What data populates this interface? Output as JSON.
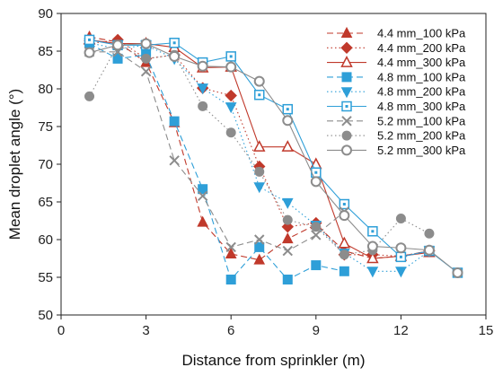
{
  "chart_data": {
    "type": "line",
    "xlabel": "Distance from sprinkler (m)",
    "ylabel": "Mean droplet angle (°)",
    "xlim": [
      0,
      15
    ],
    "ylim": [
      50,
      90
    ],
    "xticks": [
      0,
      3,
      6,
      9,
      12,
      15
    ],
    "yticks": [
      50,
      55,
      60,
      65,
      70,
      75,
      80,
      85,
      90
    ],
    "grid": false,
    "legend_position": "top-right",
    "series": [
      {
        "name": "4.4 mm_100 kPa",
        "color": "#c0392b",
        "dash": "dash",
        "marker": "triangle-filled",
        "x": [
          1,
          2,
          3,
          4,
          5,
          6,
          7,
          8,
          9,
          10,
          11,
          12,
          13
        ],
        "y": [
          86.9,
          86.2,
          83.5,
          75.5,
          62.3,
          58.1,
          57.3,
          60.1,
          62.0,
          58.5,
          57.5,
          57.8,
          58.5
        ]
      },
      {
        "name": "4.4 mm_200 kPa",
        "color": "#c0392b",
        "dash": "dot",
        "marker": "diamond-filled",
        "x": [
          1,
          2,
          3,
          4,
          5,
          6,
          7,
          8,
          9,
          10,
          11,
          12,
          13
        ],
        "y": [
          86.0,
          86.5,
          84.0,
          84.5,
          80.1,
          79.1,
          69.7,
          61.7,
          62.2,
          58.0,
          58.0,
          57.8,
          58.5
        ]
      },
      {
        "name": "4.4 mm_300 kPa",
        "color": "#c0392b",
        "dash": "solid",
        "marker": "triangle-open",
        "x": [
          1,
          2,
          3,
          4,
          5,
          6,
          7,
          8,
          9,
          10,
          11,
          12,
          13
        ],
        "y": [
          86.5,
          86.0,
          86.0,
          85.5,
          82.8,
          82.9,
          72.3,
          72.3,
          70.0,
          59.5,
          57.5,
          57.8,
          58.3
        ]
      },
      {
        "name": "4.8 mm_100 kPa",
        "color": "#2e9fd8",
        "dash": "dash",
        "marker": "square-filled",
        "x": [
          1,
          2,
          3,
          4,
          5,
          6,
          7,
          8,
          9,
          10
        ],
        "y": [
          86.0,
          84.0,
          84.5,
          75.7,
          66.7,
          54.7,
          59.0,
          54.7,
          56.6,
          55.8
        ]
      },
      {
        "name": "4.8 mm_200 kPa",
        "color": "#2e9fd8",
        "dash": "dot",
        "marker": "triangle-down-filled",
        "x": [
          1,
          2,
          3,
          4,
          5,
          6,
          7,
          8,
          9,
          10,
          11,
          12,
          13
        ],
        "y": [
          86.1,
          85.3,
          85.8,
          84.0,
          80.1,
          77.6,
          67.0,
          64.9,
          61.9,
          58.2,
          55.8,
          55.8,
          58.5
        ]
      },
      {
        "name": "4.8 mm_300 kPa",
        "color": "#2e9fd8",
        "dash": "solid",
        "marker": "square-open",
        "x": [
          1,
          2,
          3,
          4,
          5,
          6,
          7,
          8,
          9,
          10,
          11,
          12,
          13,
          14
        ],
        "y": [
          86.5,
          85.8,
          85.8,
          86.1,
          83.5,
          84.3,
          79.2,
          77.3,
          68.9,
          64.7,
          61.1,
          57.7,
          58.5,
          55.6
        ]
      },
      {
        "name": "5.2 mm_100 kPa",
        "color": "#8c8c8c",
        "dash": "dash",
        "marker": "cross",
        "x": [
          1,
          2,
          3,
          4,
          5,
          6,
          7,
          8,
          9,
          10
        ],
        "y": [
          84.9,
          84.9,
          82.3,
          70.5,
          65.8,
          59.0,
          60.0,
          58.5,
          60.6,
          63.7
        ]
      },
      {
        "name": "5.2 mm_200 kPa",
        "color": "#8c8c8c",
        "dash": "dot",
        "marker": "circle-filled",
        "x": [
          1,
          2,
          3,
          4,
          5,
          6,
          7,
          8,
          9,
          10,
          11,
          12,
          13
        ],
        "y": [
          79.0,
          85.8,
          84.0,
          84.5,
          77.7,
          74.2,
          69.0,
          62.6,
          61.7,
          58.0,
          58.6,
          62.8,
          60.8
        ]
      },
      {
        "name": "5.2 mm_300 kPa",
        "color": "#8c8c8c",
        "dash": "solid",
        "marker": "circle-open",
        "x": [
          1,
          2,
          3,
          4,
          5,
          6,
          7,
          8,
          9,
          10,
          11,
          12,
          13,
          14
        ],
        "y": [
          84.8,
          85.8,
          86.0,
          84.3,
          83.0,
          82.9,
          81.0,
          75.8,
          67.7,
          63.2,
          59.1,
          58.9,
          58.6,
          55.6
        ]
      }
    ]
  }
}
